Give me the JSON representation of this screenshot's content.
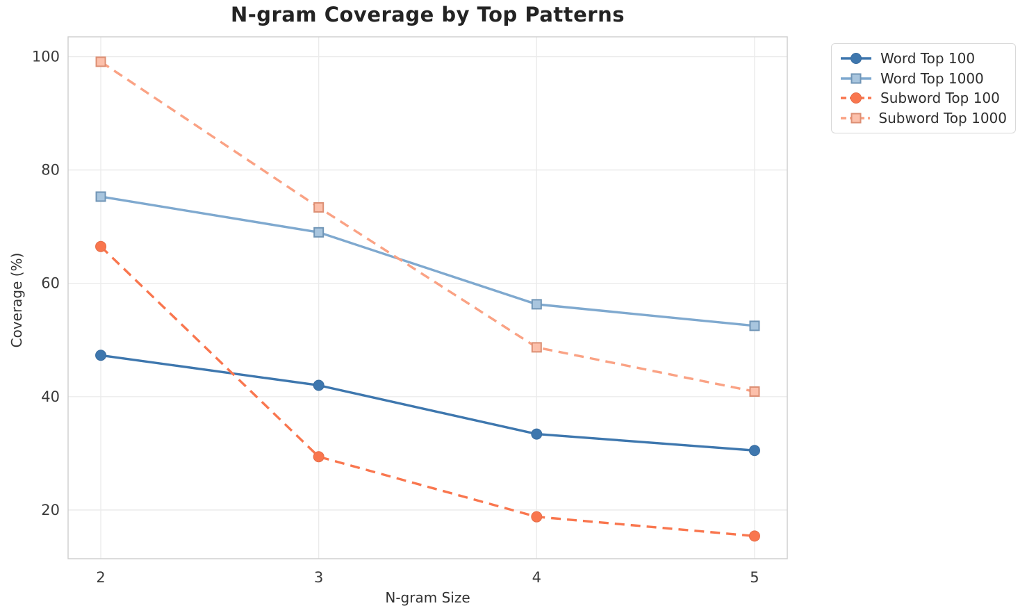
{
  "chart_data": {
    "type": "line",
    "title": "N-gram Coverage by Top Patterns",
    "xlabel": "N-gram Size",
    "ylabel": "Coverage (%)",
    "x": [
      2,
      3,
      4,
      5
    ],
    "x_tick_labels": [
      "2",
      "3",
      "4",
      "5"
    ],
    "y_ticks": [
      20,
      40,
      60,
      80,
      100
    ],
    "xlim": [
      1.85,
      5.15
    ],
    "ylim": [
      11.4,
      103.5
    ],
    "grid": true,
    "legend_position": "outside-top-right",
    "colors": {
      "word_blue": "#3E77AE",
      "word_light_blue": "#7FA9CF",
      "subword_orange": "#F9764E",
      "subword_light_orange": "#FAA284",
      "gridline": "#ebebeb",
      "spine": "#cdcdcd",
      "tick_text": "#3a3a3a"
    },
    "series": [
      {
        "name": "Word Top 100",
        "color": "#3E77AE",
        "linestyle": "solid",
        "marker": "circle",
        "values": [
          47.3,
          42.0,
          33.4,
          30.5
        ]
      },
      {
        "name": "Word Top 1000",
        "color": "#7FA9CF",
        "linestyle": "solid",
        "marker": "square",
        "values": [
          75.3,
          69.0,
          56.3,
          52.5
        ]
      },
      {
        "name": "Subword Top 100",
        "color": "#F9764E",
        "linestyle": "dashed",
        "marker": "circle",
        "values": [
          66.5,
          29.4,
          18.8,
          15.4
        ]
      },
      {
        "name": "Subword Top 1000",
        "color": "#FAA284",
        "linestyle": "dashed",
        "marker": "square",
        "values": [
          99.1,
          73.4,
          48.7,
          40.9
        ]
      }
    ]
  }
}
